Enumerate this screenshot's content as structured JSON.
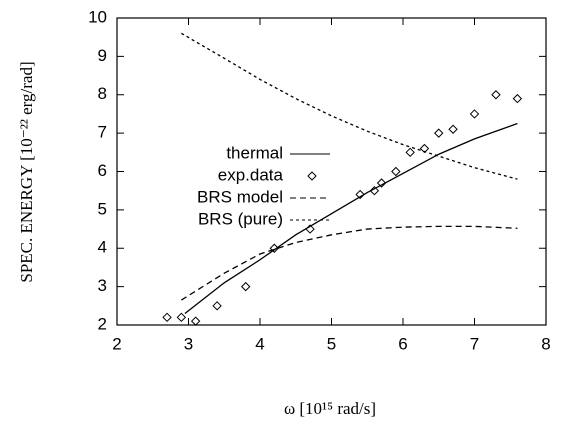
{
  "chart_data": {
    "type": "line",
    "xlabel": "ω [10¹⁵ rad/s]",
    "ylabel": "SPEC. ENERGY [10⁻²² erg/rad]",
    "xlim": [
      2,
      8
    ],
    "xticks": [
      2,
      3,
      4,
      5,
      6,
      7,
      8
    ],
    "ylim": [
      2,
      10
    ],
    "yticks": [
      2,
      3,
      4,
      5,
      6,
      7,
      8,
      9,
      10
    ],
    "color": "#000000",
    "series": [
      {
        "name": "thermal",
        "style": "solid",
        "x": [
          2.95,
          3.5,
          4,
          4.5,
          5,
          5.5,
          6,
          6.5,
          7,
          7.6
        ],
        "values": [
          2.3,
          3.1,
          3.7,
          4.35,
          4.9,
          5.45,
          5.95,
          6.45,
          6.85,
          7.25
        ]
      },
      {
        "name": "exp.data",
        "style": "diamond",
        "x": [
          2.7,
          2.9,
          3.1,
          3.4,
          3.8,
          4.2,
          4.7,
          5.4,
          5.6,
          5.7,
          5.9,
          6.1,
          6.3,
          6.5,
          6.7,
          7.0,
          7.3,
          7.6
        ],
        "values": [
          2.2,
          2.2,
          2.1,
          2.5,
          3.0,
          4.0,
          4.5,
          5.4,
          5.5,
          5.7,
          6.0,
          6.5,
          6.6,
          7.0,
          7.1,
          7.5,
          8.0,
          7.9
        ]
      },
      {
        "name": "BRS model",
        "style": "dashed",
        "x": [
          2.9,
          3.5,
          4,
          4.5,
          5,
          5.5,
          6,
          6.5,
          7,
          7.6
        ],
        "values": [
          2.65,
          3.35,
          3.85,
          4.15,
          4.35,
          4.5,
          4.55,
          4.57,
          4.57,
          4.52
        ]
      },
      {
        "name": "BRS (pure)",
        "style": "dotted",
        "x": [
          2.9,
          3.5,
          4,
          4.5,
          5,
          5.5,
          6,
          6.5,
          7,
          7.6
        ],
        "values": [
          9.6,
          8.95,
          8.4,
          7.9,
          7.45,
          7.05,
          6.7,
          6.4,
          6.1,
          5.8
        ]
      }
    ]
  }
}
